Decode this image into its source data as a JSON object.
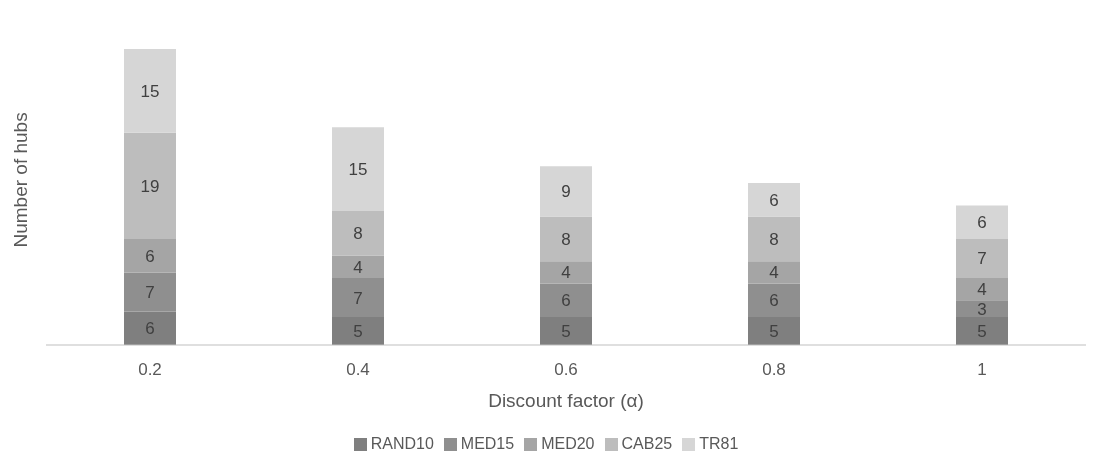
{
  "chart_data": {
    "type": "bar",
    "stacked": true,
    "xlabel": "Discount factor (α)",
    "ylabel": "Number of hubs",
    "categories": [
      "0.2",
      "0.4",
      "0.6",
      "0.8",
      "1"
    ],
    "data_labels": true,
    "legend": "bottom",
    "grid": false,
    "series": [
      {
        "name": "RAND10",
        "color": "#7f7f7f",
        "values": [
          6,
          5,
          5,
          5,
          5
        ]
      },
      {
        "name": "MED15",
        "color": "#8f8f8f",
        "values": [
          7,
          7,
          6,
          6,
          3
        ]
      },
      {
        "name": "MED20",
        "color": "#a5a5a5",
        "values": [
          6,
          4,
          4,
          4,
          4
        ]
      },
      {
        "name": "CAB25",
        "color": "#bdbdbd",
        "values": [
          19,
          8,
          8,
          8,
          7
        ]
      },
      {
        "name": "TR81",
        "color": "#d6d6d6",
        "values": [
          15,
          15,
          9,
          6,
          6
        ]
      }
    ]
  }
}
